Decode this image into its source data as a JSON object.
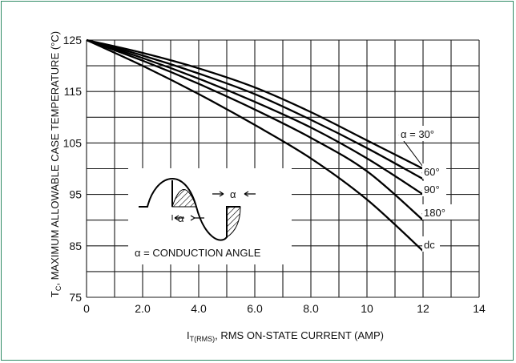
{
  "chart_data": {
    "type": "line",
    "xlabel_main": "I",
    "xlabel_sub": "T(RMS)",
    "xlabel_rest": ", RMS ON-STATE CURRENT (AMP)",
    "ylabel_main": "T",
    "ylabel_sub": "C",
    "ylabel_rest": ", MAXIMUM ALLOWABLE CASE TEMPERATURE (°C)",
    "xlim": [
      0,
      14
    ],
    "ylim": [
      75,
      125
    ],
    "x_ticks": [
      "0",
      "2.0",
      "4.0",
      "6.0",
      "8.0",
      "10",
      "12",
      "14"
    ],
    "y_ticks": [
      "125",
      "115",
      "105",
      "95",
      "85",
      "75"
    ],
    "grid": true,
    "series": [
      {
        "name": "α = 30°",
        "x": [
          0,
          2,
          4,
          6,
          8,
          10,
          12
        ],
        "y": [
          125,
          122.5,
          119.5,
          115.8,
          111,
          105.5,
          100
        ]
      },
      {
        "name": "60°",
        "x": [
          0,
          2,
          4,
          6,
          8,
          10,
          12
        ],
        "y": [
          125,
          122,
          118.5,
          114.5,
          109.5,
          104,
          98
        ]
      },
      {
        "name": "90°",
        "x": [
          0,
          2,
          4,
          6,
          8,
          10,
          12
        ],
        "y": [
          125,
          121.5,
          117.5,
          113,
          108,
          102,
          95
        ]
      },
      {
        "name": "180°",
        "x": [
          0,
          2,
          4,
          6,
          8,
          10,
          12
        ],
        "y": [
          125,
          121,
          116.5,
          111.5,
          106,
          99.5,
          90
        ]
      },
      {
        "name": "dc",
        "x": [
          0,
          2,
          4,
          6,
          8,
          10,
          12
        ],
        "y": [
          125,
          120,
          114.5,
          108.5,
          102,
          94,
          84
        ]
      }
    ],
    "inset": {
      "alpha_symbol": "α",
      "caption": "α = CONDUCTION ANGLE"
    }
  }
}
